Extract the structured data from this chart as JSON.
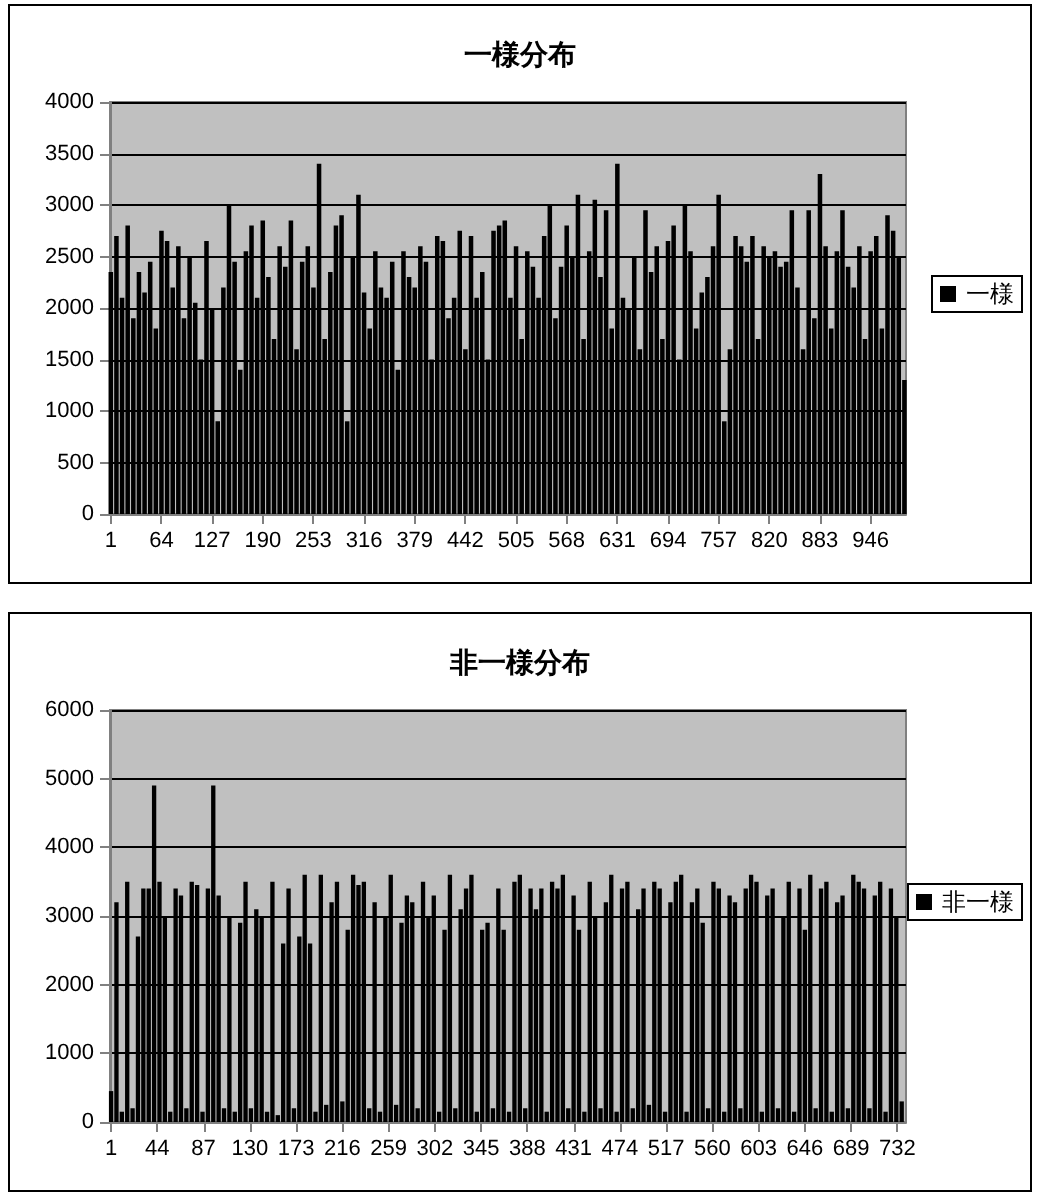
{
  "chart_data": [
    {
      "type": "bar",
      "title": "一様分布",
      "legend": "right",
      "grid": "y",
      "x": [
        1,
        8,
        15,
        22,
        29,
        36,
        43,
        50,
        57,
        64,
        71,
        78,
        85,
        92,
        99,
        106,
        113,
        120,
        127,
        134,
        141,
        148,
        155,
        162,
        169,
        176,
        183,
        190,
        197,
        204,
        211,
        218,
        225,
        232,
        239,
        246,
        253,
        260,
        267,
        274,
        281,
        288,
        295,
        302,
        309,
        316,
        323,
        330,
        337,
        344,
        351,
        358,
        365,
        372,
        379,
        386,
        393,
        400,
        407,
        414,
        421,
        428,
        435,
        442,
        449,
        456,
        463,
        470,
        477,
        484,
        491,
        498,
        505,
        512,
        519,
        526,
        533,
        540,
        547,
        554,
        561,
        568,
        575,
        582,
        589,
        596,
        603,
        610,
        617,
        624,
        631,
        638,
        645,
        652,
        659,
        666,
        673,
        680,
        687,
        694,
        701,
        708,
        715,
        722,
        729,
        736,
        743,
        750,
        757,
        764,
        771,
        778,
        785,
        792,
        799,
        806,
        813,
        820,
        827,
        834,
        841,
        848,
        855,
        862,
        869,
        876,
        883,
        890,
        897,
        904,
        911,
        918,
        925,
        932,
        939,
        946,
        953,
        960,
        967,
        974,
        981,
        988
      ],
      "xlim": [
        0,
        990
      ],
      "xticks": [
        1,
        64,
        127,
        190,
        253,
        316,
        379,
        442,
        505,
        568,
        631,
        694,
        757,
        820,
        883,
        946
      ],
      "ylim": [
        0,
        4000
      ],
      "yticks": [
        0,
        500,
        1000,
        1500,
        2000,
        2500,
        3000,
        3500,
        4000
      ],
      "series": [
        {
          "name": "一様",
          "color": "#000000",
          "values": [
            2350,
            2700,
            2100,
            2800,
            1900,
            2350,
            2150,
            2450,
            1800,
            2750,
            2650,
            2200,
            2600,
            1900,
            2500,
            2050,
            1500,
            2650,
            2000,
            900,
            2200,
            3000,
            2450,
            1400,
            2550,
            2800,
            2100,
            2850,
            2300,
            1700,
            2600,
            2400,
            2850,
            1600,
            2450,
            2600,
            2200,
            3400,
            1700,
            2350,
            2800,
            2900,
            900,
            2500,
            3100,
            2150,
            1800,
            2550,
            2200,
            2100,
            2450,
            1400,
            2550,
            2300,
            2200,
            2600,
            2450,
            1500,
            2700,
            2650,
            1900,
            2100,
            2750,
            1600,
            2700,
            2100,
            2350,
            1500,
            2750,
            2800,
            2850,
            2100,
            2600,
            1700,
            2550,
            2400,
            2100,
            2700,
            3000,
            1900,
            2400,
            2800,
            2500,
            3100,
            1700,
            2550,
            3050,
            2300,
            2950,
            1800,
            3400,
            2100,
            2000,
            2500,
            1600,
            2950,
            2350,
            2600,
            1700,
            2650,
            2800,
            1500,
            3000,
            2550,
            1800,
            2150,
            2300,
            2600,
            3100,
            900,
            1600,
            2700,
            2600,
            2450,
            2700,
            1700,
            2600,
            2500,
            2550,
            2400,
            2450,
            2950,
            2200,
            1600,
            2950,
            1900,
            3300,
            2600,
            1800,
            2550,
            2950,
            2400,
            2200,
            2600,
            1700,
            2550,
            2700,
            1800,
            2900,
            2750,
            2500,
            1300
          ]
        }
      ]
    },
    {
      "type": "bar",
      "title": "非一様分布",
      "legend": "right",
      "grid": "y",
      "x": [
        1,
        6,
        11,
        16,
        21,
        26,
        31,
        36,
        41,
        46,
        51,
        56,
        61,
        66,
        71,
        76,
        81,
        86,
        91,
        96,
        101,
        106,
        111,
        116,
        121,
        126,
        131,
        136,
        141,
        146,
        151,
        156,
        161,
        166,
        171,
        176,
        181,
        186,
        191,
        196,
        201,
        206,
        211,
        216,
        221,
        226,
        231,
        236,
        241,
        246,
        251,
        256,
        261,
        266,
        271,
        276,
        281,
        286,
        291,
        296,
        301,
        306,
        311,
        316,
        321,
        326,
        331,
        336,
        341,
        346,
        351,
        356,
        361,
        366,
        371,
        376,
        381,
        386,
        391,
        396,
        401,
        406,
        411,
        416,
        421,
        426,
        431,
        436,
        441,
        446,
        451,
        456,
        461,
        466,
        471,
        476,
        481,
        486,
        491,
        496,
        501,
        506,
        511,
        516,
        521,
        526,
        531,
        536,
        541,
        546,
        551,
        556,
        561,
        566,
        571,
        576,
        581,
        586,
        591,
        596,
        601,
        606,
        611,
        616,
        621,
        626,
        631,
        636,
        641,
        646,
        651,
        656,
        661,
        666,
        671,
        676,
        681,
        686,
        691,
        696,
        701,
        706,
        711,
        716,
        721,
        726,
        731,
        736
      ],
      "xlim": [
        0,
        740
      ],
      "xticks": [
        1,
        44,
        87,
        130,
        173,
        216,
        259,
        302,
        345,
        388,
        431,
        474,
        517,
        560,
        603,
        646,
        689,
        732
      ],
      "ylim": [
        0,
        6000
      ],
      "yticks": [
        0,
        1000,
        2000,
        3000,
        4000,
        5000,
        6000
      ],
      "series": [
        {
          "name": "非一様",
          "color": "#000000",
          "values": [
            450,
            3200,
            150,
            3500,
            200,
            2700,
            3400,
            3400,
            4900,
            3500,
            3000,
            150,
            3400,
            3300,
            200,
            3500,
            3450,
            150,
            3400,
            4900,
            3300,
            200,
            3000,
            150,
            2900,
            3500,
            200,
            3100,
            3000,
            150,
            3500,
            100,
            2600,
            3400,
            200,
            2700,
            3600,
            2600,
            150,
            3600,
            250,
            3200,
            3500,
            300,
            2800,
            3600,
            3450,
            3500,
            200,
            3200,
            150,
            3000,
            3600,
            250,
            2900,
            3300,
            3200,
            200,
            3500,
            3000,
            3300,
            150,
            2800,
            3600,
            200,
            3100,
            3400,
            3600,
            150,
            2800,
            2900,
            200,
            3400,
            2800,
            150,
            3500,
            3600,
            200,
            3400,
            3100,
            3400,
            150,
            3500,
            3400,
            3600,
            200,
            3300,
            2800,
            150,
            3500,
            3000,
            200,
            3200,
            3600,
            150,
            3400,
            3500,
            200,
            3100,
            3400,
            250,
            3500,
            3400,
            150,
            3200,
            3500,
            3600,
            150,
            3200,
            3400,
            2900,
            200,
            3500,
            3400,
            150,
            3300,
            3200,
            200,
            3400,
            3600,
            3500,
            150,
            3300,
            3400,
            200,
            3000,
            3500,
            150,
            3400,
            2800,
            3600,
            200,
            3400,
            3500,
            150,
            3200,
            3300,
            200,
            3600,
            3500,
            3400,
            200,
            3300,
            3500,
            150,
            3400,
            3000,
            300
          ]
        }
      ]
    }
  ]
}
